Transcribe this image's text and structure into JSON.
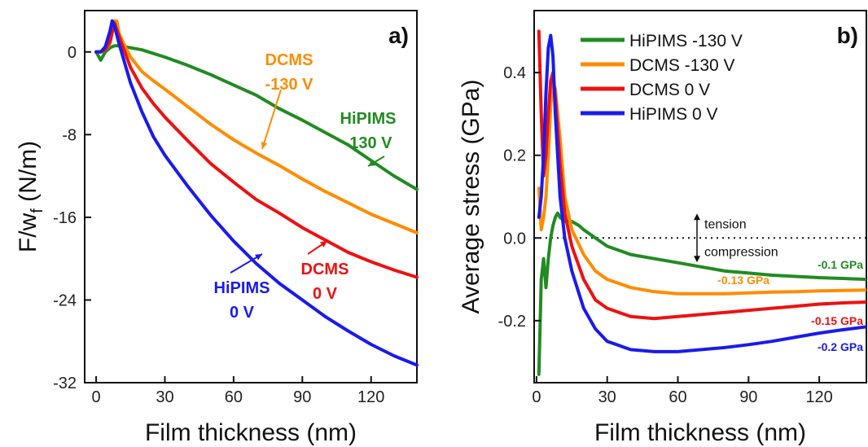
{
  "chart_data": [
    {
      "type": "line",
      "panel": "a)",
      "xlabel": "Film thickness (nm)",
      "ylabel_main": "F/w",
      "ylabel_sub": "f",
      "ylabel_unit": " (N/m)",
      "xlim": [
        -5,
        140
      ],
      "ylim": [
        -32,
        4
      ],
      "xticks": [
        0,
        30,
        60,
        90,
        120
      ],
      "yticks": [
        0,
        -8,
        -16,
        -24,
        -32
      ],
      "series": [
        {
          "name": "HiPIMS -130 V",
          "color": "#228B22",
          "x": [
            0,
            2,
            4,
            6,
            8,
            10,
            15,
            20,
            30,
            40,
            50,
            60,
            70,
            80,
            90,
            100,
            110,
            120,
            130,
            140
          ],
          "y": [
            0,
            -0.8,
            0,
            0.4,
            0.6,
            0.6,
            0.4,
            0.2,
            -0.5,
            -1.3,
            -2.2,
            -3.2,
            -4.2,
            -5.5,
            -6.6,
            -7.8,
            -9.0,
            -10.5,
            -12.0,
            -13.3
          ]
        },
        {
          "name": "DCMS -130 V",
          "color": "#FF8C00",
          "x": [
            0,
            2,
            4,
            6,
            8,
            9,
            10,
            12,
            15,
            20,
            25,
            30,
            40,
            50,
            60,
            70,
            80,
            90,
            100,
            110,
            120,
            130,
            140
          ],
          "y": [
            0,
            0,
            0.2,
            0.8,
            3.0,
            3.0,
            1.8,
            0.8,
            -0.5,
            -1.9,
            -2.8,
            -3.6,
            -5.3,
            -7.0,
            -8.5,
            -9.8,
            -11.0,
            -12.3,
            -13.5,
            -14.6,
            -15.7,
            -16.6,
            -17.5
          ]
        },
        {
          "name": "DCMS 0 V",
          "color": "#EE1111",
          "x": [
            0,
            2,
            4,
            6,
            8,
            10,
            15,
            20,
            25,
            30,
            40,
            50,
            60,
            70,
            80,
            90,
            100,
            110,
            120,
            130,
            140
          ],
          "y": [
            0,
            0,
            0.2,
            1.0,
            2.8,
            1.5,
            -1.5,
            -3.5,
            -5.0,
            -6.3,
            -8.6,
            -10.8,
            -12.6,
            -14.3,
            -15.6,
            -17.0,
            -18.2,
            -19.4,
            -20.3,
            -21.1,
            -21.8
          ]
        },
        {
          "name": "HiPIMS 0 V",
          "color": "#1A1AEE",
          "x": [
            0,
            2,
            4,
            6,
            7,
            8,
            10,
            15,
            20,
            25,
            30,
            40,
            50,
            60,
            70,
            80,
            90,
            100,
            110,
            120,
            130,
            140
          ],
          "y": [
            0,
            0,
            0.5,
            2.0,
            3.0,
            2.5,
            0.8,
            -3.0,
            -5.8,
            -8.2,
            -10.0,
            -13.0,
            -15.8,
            -18.3,
            -20.5,
            -22.4,
            -24.0,
            -25.6,
            -27.0,
            -28.3,
            -29.4,
            -30.3
          ]
        }
      ],
      "annotations": [
        {
          "text_lines": [
            "DCMS",
            "-130 V"
          ],
          "color": "#FF8C00"
        },
        {
          "text_lines": [
            "HiPIMS",
            "-130 V"
          ],
          "color": "#228B22"
        },
        {
          "text_lines": [
            "DCMS",
            "0 V"
          ],
          "color": "#EE1111"
        },
        {
          "text_lines": [
            "HiPIMS",
            "0 V"
          ],
          "color": "#1A1AEE"
        }
      ]
    },
    {
      "type": "line",
      "panel": "b)",
      "xlabel": "Film thickness (nm)",
      "ylabel": "Average stress (GPa)",
      "xlim": [
        -1,
        140
      ],
      "ylim": [
        -0.35,
        0.55
      ],
      "xticks": [
        0,
        30,
        60,
        90,
        120
      ],
      "yticks": [
        0.4,
        0.2,
        0.0,
        -0.2
      ],
      "ytick_labels": [
        "0.4",
        "0.2",
        "0.0",
        "-0.2"
      ],
      "reference_line_y": 0.0,
      "legend": [
        "HiPIMS -130 V",
        "DCMS -130 V",
        "DCMS 0 V",
        "HiPIMS 0 V"
      ],
      "legend_position": "top-right",
      "series": [
        {
          "name": "HiPIMS -130 V",
          "color": "#228B22",
          "x": [
            1,
            2,
            3,
            4,
            5,
            6,
            7,
            8,
            9,
            10,
            12,
            15,
            18,
            20,
            25,
            30,
            40,
            50,
            60,
            70,
            80,
            90,
            100,
            110,
            120,
            130,
            140
          ],
          "y": [
            -0.33,
            -0.1,
            -0.05,
            -0.12,
            -0.05,
            0.0,
            0.03,
            0.05,
            0.06,
            0.05,
            0.04,
            0.04,
            0.03,
            0.02,
            0.0,
            -0.02,
            -0.04,
            -0.05,
            -0.06,
            -0.07,
            -0.08,
            -0.085,
            -0.09,
            -0.093,
            -0.096,
            -0.098,
            -0.1
          ]
        },
        {
          "name": "DCMS -130 V",
          "color": "#FF8C00",
          "x": [
            1,
            2,
            3,
            4,
            5,
            6,
            7,
            8,
            9,
            10,
            12,
            15,
            20,
            25,
            30,
            40,
            50,
            60,
            70,
            80,
            90,
            100,
            110,
            120,
            130,
            140
          ],
          "y": [
            0.12,
            0.02,
            0.05,
            0.1,
            0.2,
            0.32,
            0.38,
            0.36,
            0.3,
            0.24,
            0.1,
            0.02,
            -0.04,
            -0.08,
            -0.1,
            -0.12,
            -0.13,
            -0.135,
            -0.135,
            -0.135,
            -0.133,
            -0.131,
            -0.13,
            -0.128,
            -0.127,
            -0.126
          ]
        },
        {
          "name": "DCMS 0 V",
          "color": "#EE1111",
          "x": [
            1,
            2,
            3,
            4,
            5,
            6,
            7,
            8,
            9,
            10,
            12,
            15,
            20,
            25,
            30,
            40,
            50,
            60,
            70,
            80,
            90,
            100,
            110,
            120,
            130,
            140
          ],
          "y": [
            0.5,
            0.3,
            0.15,
            0.2,
            0.3,
            0.38,
            0.4,
            0.34,
            0.26,
            0.18,
            0.06,
            -0.02,
            -0.1,
            -0.15,
            -0.17,
            -0.19,
            -0.195,
            -0.19,
            -0.185,
            -0.18,
            -0.175,
            -0.17,
            -0.165,
            -0.16,
            -0.157,
            -0.155
          ]
        },
        {
          "name": "HiPIMS 0 V",
          "color": "#1A1AEE",
          "x": [
            1,
            2,
            3,
            4,
            5,
            6,
            7,
            8,
            9,
            10,
            12,
            15,
            20,
            25,
            30,
            40,
            50,
            60,
            70,
            80,
            90,
            100,
            110,
            120,
            130,
            140
          ],
          "y": [
            0.05,
            0.1,
            0.2,
            0.35,
            0.46,
            0.49,
            0.44,
            0.3,
            0.2,
            0.1,
            0.0,
            -0.08,
            -0.17,
            -0.22,
            -0.25,
            -0.27,
            -0.275,
            -0.275,
            -0.27,
            -0.265,
            -0.258,
            -0.25,
            -0.24,
            -0.23,
            -0.222,
            -0.215
          ]
        }
      ],
      "annotations": [
        {
          "text": "tension"
        },
        {
          "text": "compression"
        },
        {
          "text": "-0.1 GPa",
          "color": "#228B22"
        },
        {
          "text": "-0.13 GPa",
          "color": "#FF8C00"
        },
        {
          "text": "-0.15 GPa",
          "color": "#EE1111"
        },
        {
          "text": "-0.2 GPa",
          "color": "#1A1AEE"
        }
      ]
    }
  ]
}
